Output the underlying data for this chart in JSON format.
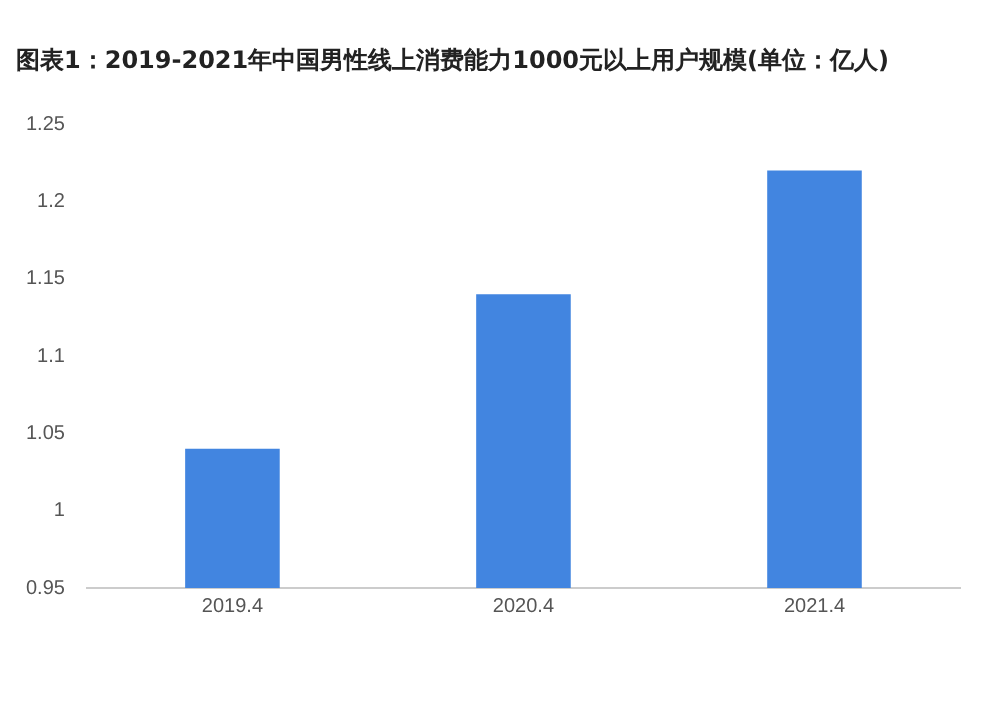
{
  "chart_data": {
    "type": "bar",
    "title": "图表1：2019-2021年中国男性线上消费能力1000元以上用户规模(单位：亿人)",
    "categories": [
      "2019.4",
      "2020.4",
      "2021.4"
    ],
    "values": [
      1.04,
      1.14,
      1.22
    ],
    "color": "#4285e0",
    "ylim": [
      0.95,
      1.25
    ],
    "yticks": [
      0.95,
      1,
      1.05,
      1.1,
      1.15,
      1.2,
      1.25
    ],
    "grid": false,
    "legend": false
  }
}
